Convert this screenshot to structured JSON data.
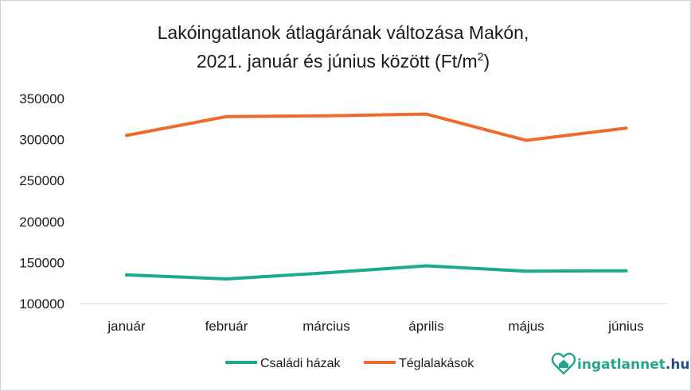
{
  "chart_data": {
    "type": "line",
    "title": "Lakóingatlanok átlagárának változása Makón,",
    "subtitle_prefix": "2021. január és június között (Ft/m",
    "subtitle_sup": "2",
    "subtitle_suffix": ")",
    "categories": [
      "január",
      "február",
      "március",
      "április",
      "május",
      "június"
    ],
    "y_ticks": [
      "100000",
      "150000",
      "200000",
      "250000",
      "300000",
      "350000"
    ],
    "ylim": [
      100000,
      350000
    ],
    "grid": false,
    "legend_position": "bottom",
    "series": [
      {
        "name": "Családi házak",
        "color": "#1aab8f",
        "values": [
          135000,
          130000,
          137500,
          146000,
          139500,
          140000
        ]
      },
      {
        "name": "Téglalakások",
        "color": "#f06a2c",
        "values": [
          305000,
          328000,
          329000,
          331000,
          299000,
          314000
        ]
      }
    ]
  },
  "brand": {
    "name_main": "ingatlannet",
    "name_suffix": ".hu",
    "color_main": "#23a58b",
    "color_suffix": "#2b4a8a"
  }
}
